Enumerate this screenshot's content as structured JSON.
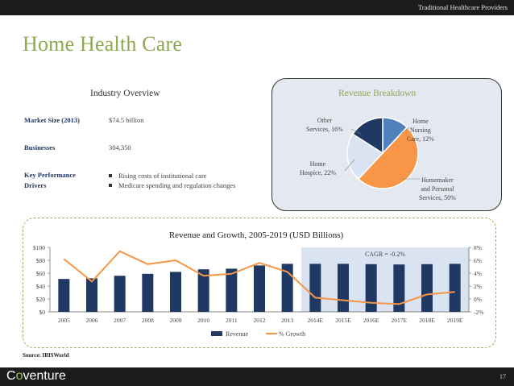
{
  "header": {
    "section": "Traditional Healthcare Providers"
  },
  "title": "Home Health Care",
  "overview": {
    "title": "Industry Overview",
    "market_size_label": "Market Size (2013)",
    "market_size_value": "$74.5 billion",
    "businesses_label": "Businesses",
    "businesses_value": "304,350",
    "kpd_label_1": "Key Performance",
    "kpd_label_2": "Drivers",
    "drivers": [
      "Rising costs of institutional care",
      "Medicare spending and regulation changes"
    ]
  },
  "revenue_breakdown": {
    "title": "Revenue Breakdown",
    "slices": [
      {
        "label_1": "Home",
        "label_2": "Nursing",
        "label_3": "Care, 12%",
        "value": 12,
        "color": "#4f81bd"
      },
      {
        "label_1": "Homemaker",
        "label_2": "and Personal",
        "label_3": "Services, 50%",
        "value": 50,
        "color": "#f79646"
      },
      {
        "label_1": "Home",
        "label_2": "Hospice, 22%",
        "label_3": "",
        "value": 22,
        "color": "#dae3f1"
      },
      {
        "label_1": "Other",
        "label_2": "Services, 16%",
        "label_3": "",
        "value": 16,
        "color": "#1f3864"
      }
    ]
  },
  "chart_data": {
    "type": "bar",
    "title": "Revenue and Growth, 2005-2019 (USD Billions)",
    "categories": [
      "2005",
      "2006",
      "2007",
      "2008",
      "2009",
      "2010",
      "2011",
      "2012",
      "2013",
      "2014E",
      "2015E",
      "2016E",
      "2017E",
      "2018E",
      "2019E"
    ],
    "series": [
      {
        "name": "Revenue",
        "type": "bar",
        "axis": "left",
        "color": "#1f3864",
        "values": [
          51,
          52,
          56,
          59,
          62,
          66,
          67,
          72,
          74.5,
          74.5,
          74.5,
          74,
          73.5,
          74,
          74.5
        ]
      },
      {
        "name": "% Growth",
        "type": "line",
        "axis": "right",
        "color": "#f79646",
        "values": [
          6.2,
          2.7,
          7.4,
          5.4,
          6.0,
          3.6,
          3.9,
          5.6,
          4.2,
          0.2,
          -0.2,
          -0.6,
          -0.8,
          0.7,
          1.1
        ]
      }
    ],
    "y_left": {
      "min": 0,
      "max": 100,
      "ticks": [
        "$0",
        "$20",
        "$40",
        "$60",
        "$80",
        "$100"
      ]
    },
    "y_right": {
      "min": -2,
      "max": 8,
      "ticks": [
        "-2%",
        "0%",
        "2%",
        "4%",
        "6%",
        "8%"
      ]
    },
    "annotation": "CAGR = -0.2%",
    "shaded_from": "2014E",
    "legend": [
      "Revenue",
      "% Growth"
    ]
  },
  "source": "Source: IBISWorld",
  "footer": {
    "logo_prefix": "C",
    "logo_o": "o",
    "logo_suffix": "venture",
    "page": "17"
  }
}
